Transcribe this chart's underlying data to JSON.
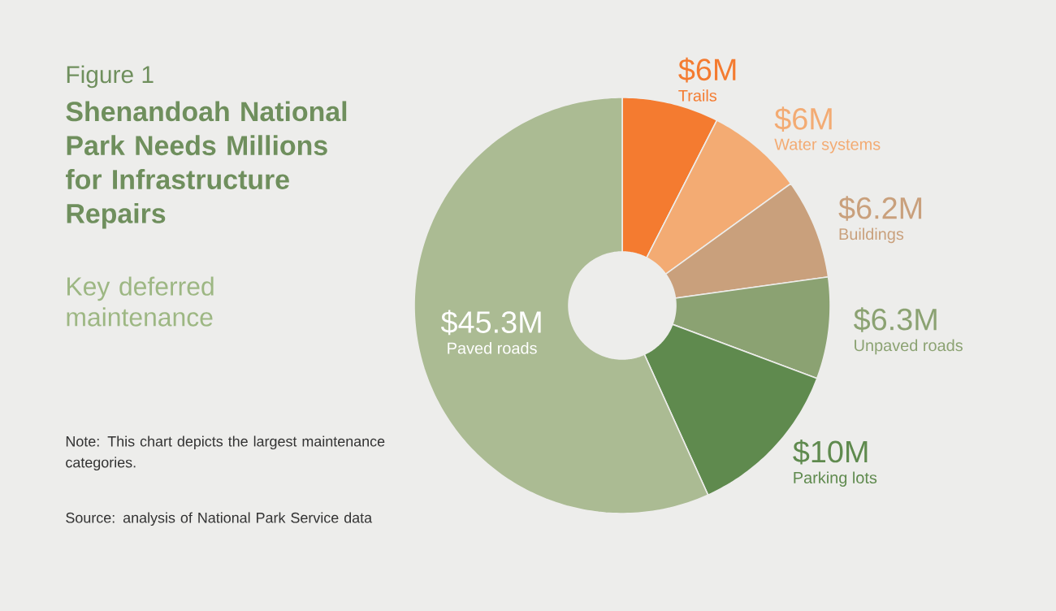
{
  "chart_data": {
    "type": "donut",
    "title": "Shenandoah National Park Needs Millions for Infrastructure Repairs",
    "subtitle": "Key deferred maintenance",
    "categories": [
      "Trails",
      "Water systems",
      "Buildings",
      "Unpaved roads",
      "Parking lots",
      "Paved roads"
    ],
    "values": [
      6,
      6,
      6.2,
      6.3,
      10,
      45.3
    ],
    "value_labels": [
      "$6M",
      "$6M",
      "$6.2M",
      "$6.3M",
      "$10M",
      "$45.3M"
    ],
    "colors": [
      "#f47b30",
      "#f3ab73",
      "#c9a07c",
      "#8ba272",
      "#5f8a4e",
      "#abbb93"
    ],
    "annotations": [
      "Figure 1",
      "Note: This chart depicts the largest maintenance categories.",
      "Source: analysis of National Park Service data"
    ]
  }
}
